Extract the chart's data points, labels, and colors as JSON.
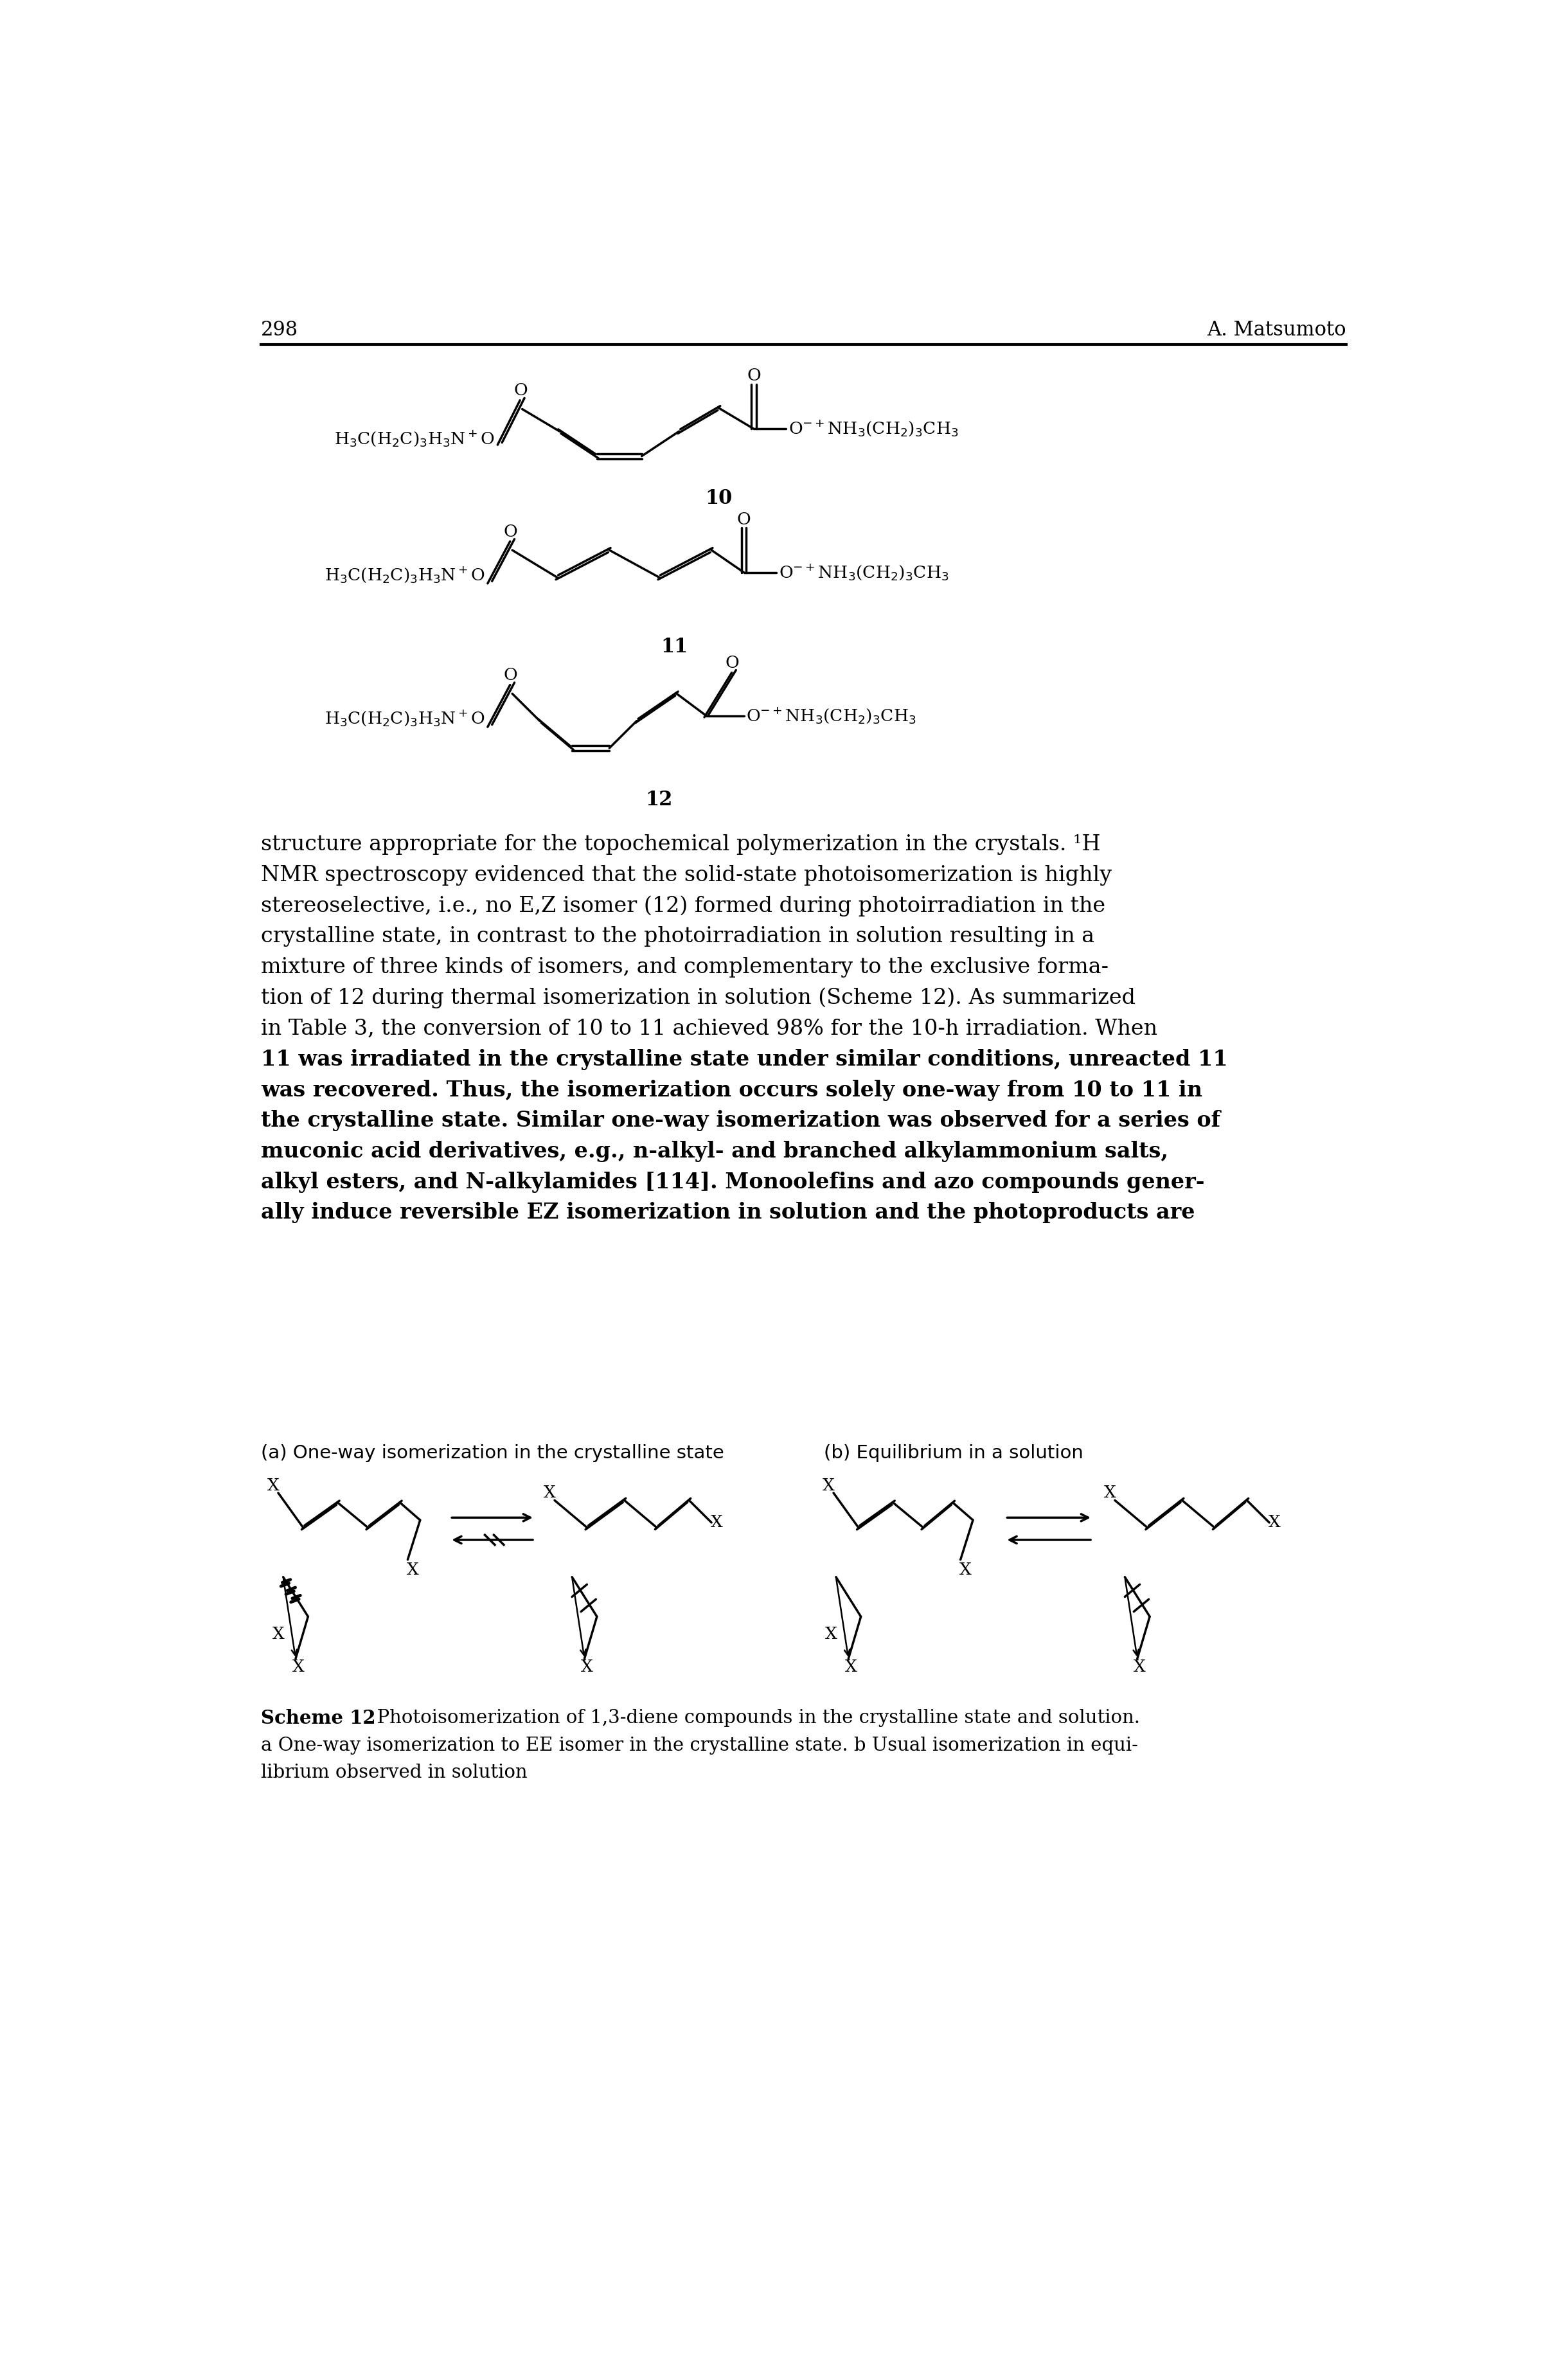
{
  "page_number": "298",
  "author": "A. Matsumoto",
  "background_color": "#ffffff",
  "text_color": "#000000",
  "body_text": [
    "structure appropriate for the topochemical polymerization in the crystals. ¹H",
    "NMR spectroscopy evidenced that the solid-state photoisomerization is highly",
    "stereoselective, i.e., no E,Z isomer (12) formed during photoirradiation in the",
    "crystalline state, in contrast to the photoirradiation in solution resulting in a",
    "mixture of three kinds of isomers, and complementary to the exclusive forma-",
    "tion of 12 during thermal isomerization in solution (Scheme 12). As summarized",
    "in Table 3, the conversion of 10 to 11 achieved 98% for the 10-h irradiation. When",
    "11 was irradiated in the crystalline state under similar conditions, unreacted 11",
    "was recovered. Thus, the isomerization occurs solely one-way from 10 to 11 in",
    "the crystalline state. Similar one-way isomerization was observed for a series of",
    "muconic acid derivatives, e.g., n-alkyl- and branched alkylammonium salts,",
    "alkyl esters, and N-alkylamides [114]. Monoolefins and azo compounds gener-",
    "ally induce reversible EZ isomerization in solution and the photoproducts are"
  ],
  "bold_line_indices": [
    7,
    8,
    9,
    10,
    11,
    12
  ],
  "scheme_label_a": "(a) One-way isomerization in the crystalline state",
  "scheme_label_b": "(b) Equilibrium in a solution",
  "scheme_caption_bold": "Scheme 12",
  "scheme_caption_rest": "  Photoisomerization of 1,3-diene compounds in the crystalline state and solution.",
  "scheme_caption_line2": "a One-way isomerization to EE isomer in the crystalline state. b Usual isomerization in equi-",
  "scheme_caption_line3": "librium observed in solution"
}
